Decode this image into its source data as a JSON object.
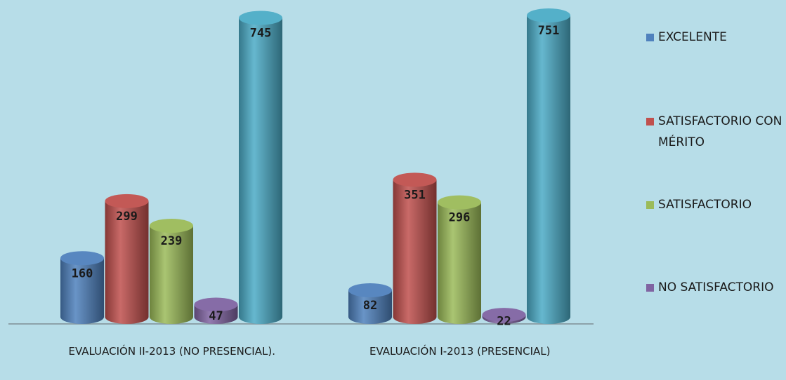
{
  "chart_data": {
    "type": "bar",
    "categories": [
      "EVALUACIÓN II-2013 (NO PRESENCIAL).",
      "EVALUACIÓN I-2013 (PRESENCIAL)"
    ],
    "series": [
      {
        "name": "EXCELENTE",
        "color": "#4f81bd",
        "values": [
          160,
          82
        ]
      },
      {
        "name": "SATISFACTORIO CON MÉRITO",
        "color": "#c0504d",
        "values": [
          299,
          351
        ]
      },
      {
        "name": "SATISFACTORIO",
        "color": "#9bbb59",
        "values": [
          239,
          296
        ]
      },
      {
        "name": "NO SATISFACTORIO",
        "color": "#8064a2",
        "values": [
          47,
          22
        ]
      },
      {
        "name": null,
        "color": "#4bacc6",
        "values": [
          745,
          751
        ]
      }
    ],
    "legend": "right"
  }
}
